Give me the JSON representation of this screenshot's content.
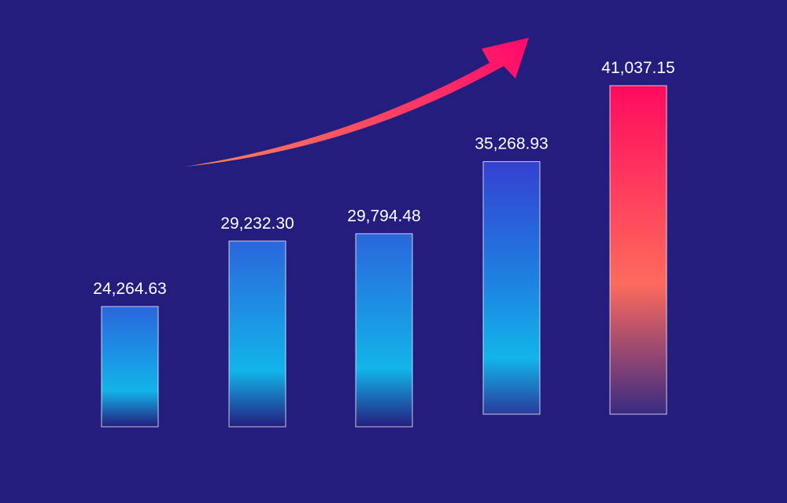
{
  "chart_data": {
    "type": "bar",
    "values": [
      24264.63,
      29232.3,
      29794.48,
      35268.93,
      41037.15
    ],
    "value_labels": [
      "24,264.63",
      "29,232.30",
      "29,794.48",
      "35,268.93",
      "41,037.15"
    ]
  }
}
